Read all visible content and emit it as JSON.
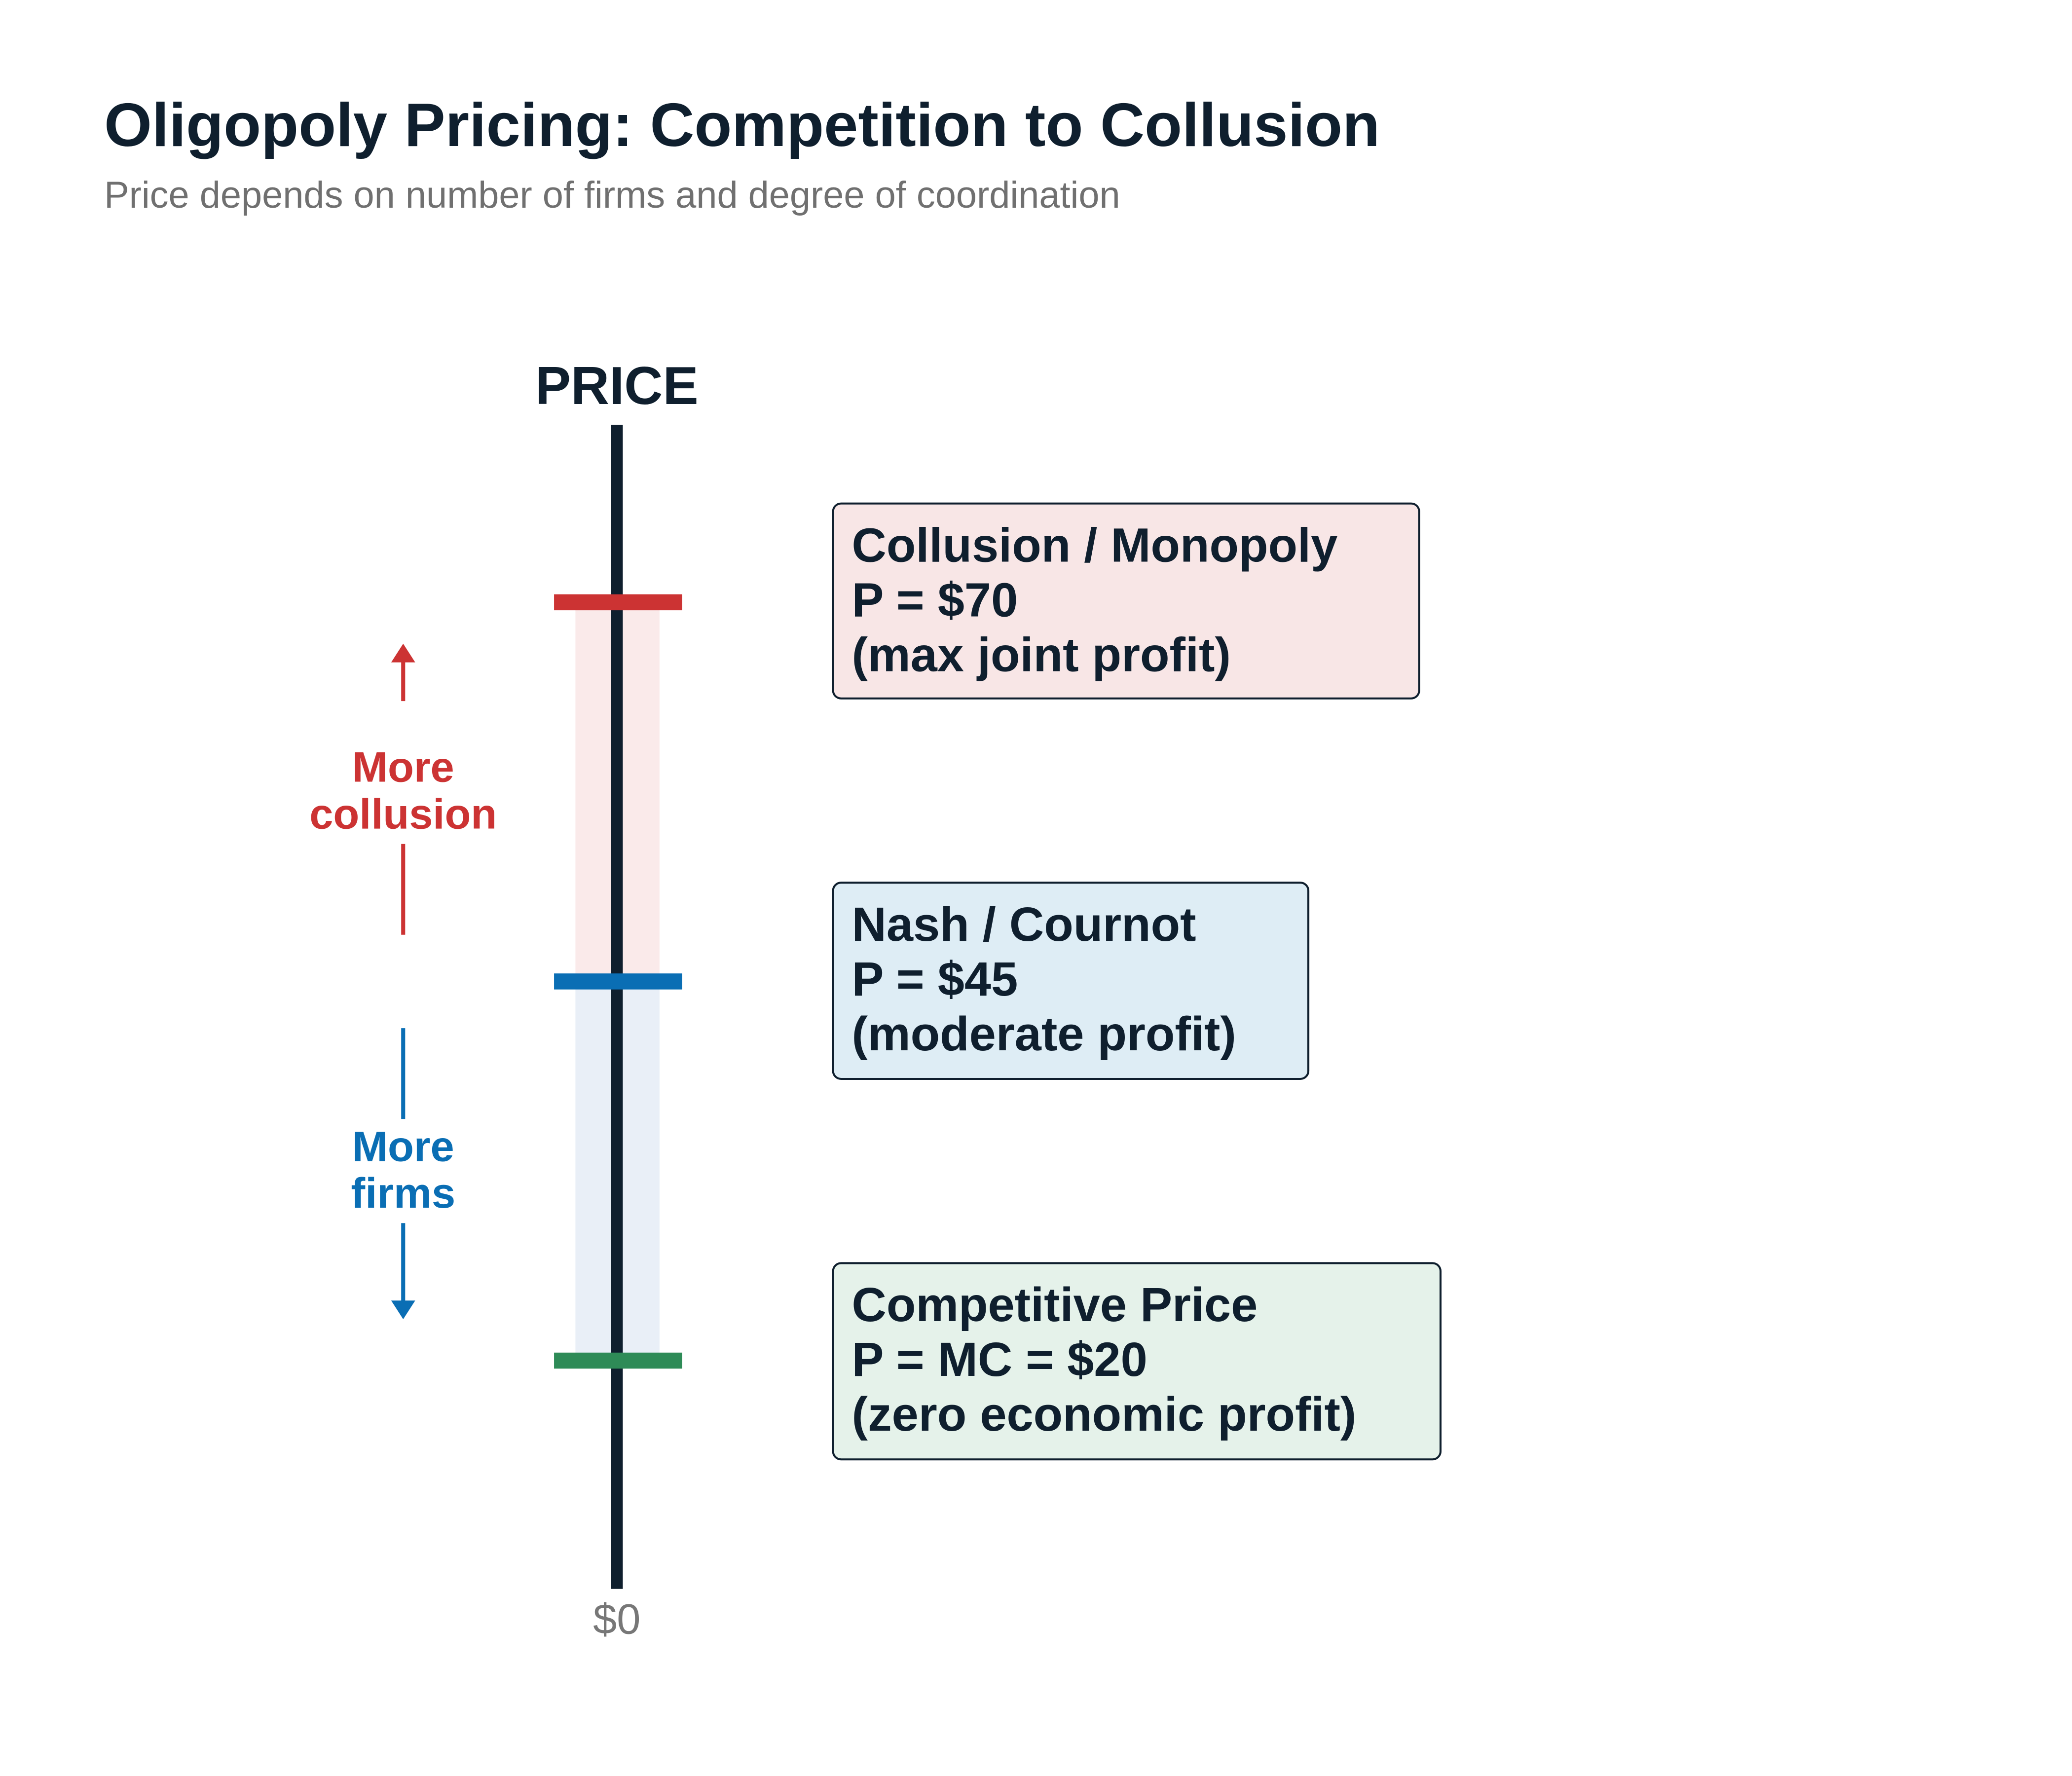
{
  "title": "Oligopoly Pricing: Competition to Collusion",
  "subtitle": "Price depends on number of firms and degree of coordination",
  "axis": {
    "label": "PRICE",
    "bottom_label": "$0"
  },
  "levels": [
    {
      "name": "Collusion / Monopoly",
      "price": "P = $70",
      "note": "(max joint profit)"
    },
    {
      "name": "Nash / Cournot",
      "price": "P = $45",
      "note": "(moderate profit)"
    },
    {
      "name": "Competitive Price",
      "price": "P = MC = $20",
      "note": "(zero economic profit)"
    }
  ],
  "arrows": [
    {
      "lines": [
        "More",
        "collusion"
      ]
    },
    {
      "lines": [
        "More",
        "firms"
      ]
    }
  ]
}
